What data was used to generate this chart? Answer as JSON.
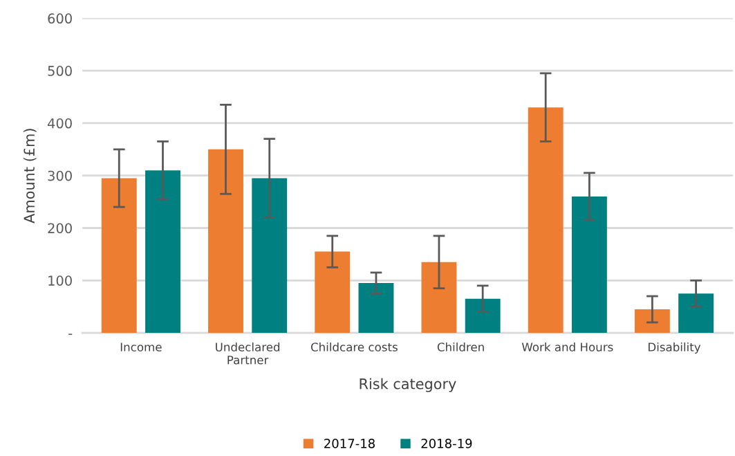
{
  "chart_data": {
    "type": "bar",
    "xlabel": "Risk category",
    "ylabel": "Amount (£m)",
    "categories": [
      "Income",
      "Undeclared\nPartner",
      "Childcare costs",
      "Children",
      "Work and Hours",
      "Disability"
    ],
    "series": [
      {
        "name": "2017-18",
        "color": "#ed7d31",
        "values": [
          295,
          350,
          155,
          135,
          430,
          45
        ],
        "errors": [
          55,
          85,
          30,
          50,
          65,
          25
        ]
      },
      {
        "name": "2018-19",
        "color": "#008080",
        "values": [
          310,
          295,
          95,
          65,
          260,
          75
        ],
        "errors": [
          55,
          75,
          20,
          25,
          45,
          25
        ]
      }
    ],
    "ylim": [
      0,
      600
    ],
    "yticks": [
      {
        "value": 0,
        "label": "-"
      },
      100,
      200,
      300,
      400,
      500,
      600
    ],
    "grid": "y",
    "legend": "bottom"
  }
}
